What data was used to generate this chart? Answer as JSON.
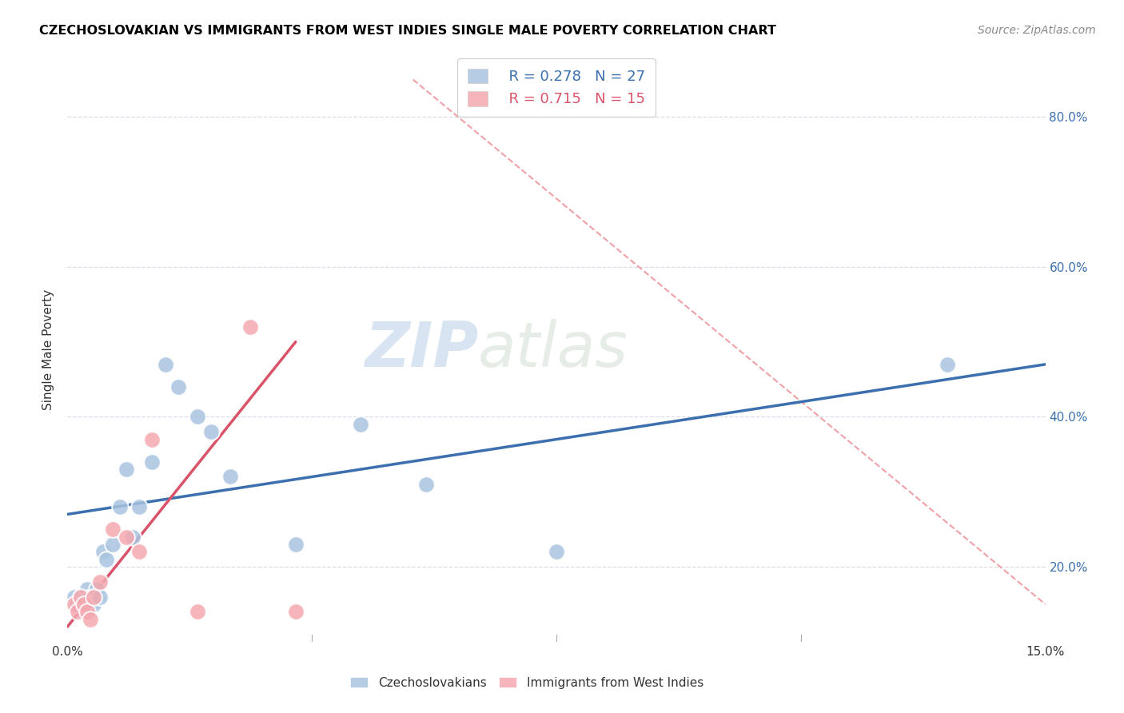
{
  "title": "CZECHOSLOVAKIAN VS IMMIGRANTS FROM WEST INDIES SINGLE MALE POVERTY CORRELATION CHART",
  "source": "Source: ZipAtlas.com",
  "ylabel": "Single Male Poverty",
  "xlim": [
    0.0,
    15.0
  ],
  "ylim": [
    10.0,
    88.0
  ],
  "watermark": "ZIPatlas",
  "legend_blue_r": "R = 0.278",
  "legend_blue_n": "N = 27",
  "legend_pink_r": "R = 0.715",
  "legend_pink_n": "N = 15",
  "blue_color": "#a8c4e0",
  "pink_color": "#f4a8b0",
  "blue_line_color": "#3b6fad",
  "pink_line_color": "#d9536a",
  "diag_color": "#f0a0a8",
  "czechs_x": [
    0.1,
    0.15,
    0.2,
    0.25,
    0.3,
    0.35,
    0.4,
    0.45,
    0.5,
    0.55,
    0.6,
    0.7,
    0.8,
    0.9,
    1.0,
    1.1,
    1.3,
    1.5,
    1.7,
    2.0,
    2.2,
    2.5,
    3.5,
    4.5,
    5.5,
    7.5,
    13.5
  ],
  "czechs_y": [
    16,
    15,
    16,
    15,
    17,
    16,
    15,
    17,
    16,
    22,
    21,
    23,
    28,
    33,
    24,
    28,
    34,
    47,
    44,
    40,
    38,
    32,
    23,
    39,
    31,
    22,
    47
  ],
  "westindies_x": [
    0.1,
    0.15,
    0.2,
    0.25,
    0.3,
    0.35,
    0.4,
    0.5,
    0.7,
    0.9,
    1.1,
    1.3,
    2.0,
    2.8,
    3.5
  ],
  "westindies_y": [
    15,
    14,
    16,
    15,
    14,
    13,
    16,
    18,
    25,
    24,
    22,
    37,
    14,
    52,
    14
  ],
  "blue_line_x": [
    0.0,
    15.0
  ],
  "blue_line_y": [
    27.0,
    47.0
  ],
  "pink_line_x": [
    0.0,
    3.5
  ],
  "pink_line_y": [
    12.0,
    50.0
  ],
  "diag_line_x": [
    5.3,
    15.0
  ],
  "diag_line_y": [
    85.0,
    15.0
  ],
  "ytick_positions": [
    20.0,
    40.0,
    60.0,
    80.0
  ],
  "ytick_labels": [
    "20.0%",
    "40.0%",
    "60.0%",
    "80.0%"
  ],
  "background_color": "#ffffff",
  "grid_color": "#d8dde8"
}
